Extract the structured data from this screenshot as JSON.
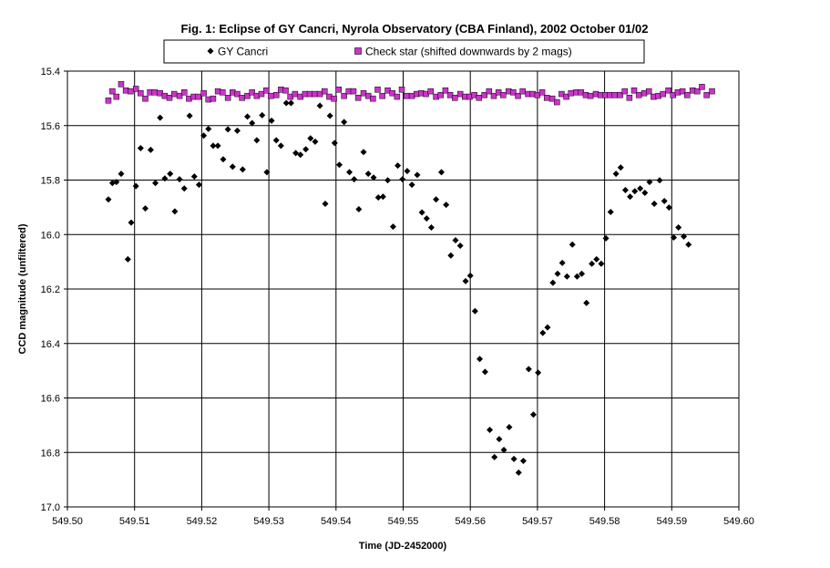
{
  "chart_data": {
    "type": "scatter",
    "title": "Fig. 1:  Eclipse of GY Cancri, Nyrola Observatory (CBA Finland), 2002 October 01/02",
    "xlabel": "Time (JD-2452000)",
    "ylabel": "CCD magnitude (unfiltered)",
    "xlim": [
      549.5,
      549.6
    ],
    "ylim": [
      15.4,
      17.0
    ],
    "y_inverted": true,
    "x_ticks": [
      "549.50",
      "549.51",
      "549.52",
      "549.53",
      "549.54",
      "549.55",
      "549.56",
      "549.57",
      "549.58",
      "549.59",
      "549.60"
    ],
    "y_ticks": [
      "15.4",
      "15.6",
      "15.8",
      "16.0",
      "16.2",
      "16.4",
      "16.6",
      "16.8",
      "17.0"
    ],
    "grid": {
      "horizontal": true,
      "vertical": true
    },
    "legend_position": "top",
    "series": [
      {
        "name": "GY Cancri",
        "marker": "diamond",
        "color": "#000000",
        "points": [
          [
            549.5061,
            15.871
          ],
          [
            549.5067,
            15.811
          ],
          [
            549.5073,
            15.807
          ],
          [
            549.508,
            15.777
          ],
          [
            549.509,
            16.091
          ],
          [
            549.5095,
            15.956
          ],
          [
            549.5102,
            15.822
          ],
          [
            549.5109,
            15.683
          ],
          [
            549.5116,
            15.904
          ],
          [
            549.5124,
            15.689
          ],
          [
            549.5131,
            15.811
          ],
          [
            549.5138,
            15.571
          ],
          [
            549.5145,
            15.794
          ],
          [
            549.5153,
            15.777
          ],
          [
            549.516,
            15.915
          ],
          [
            549.5167,
            15.797
          ],
          [
            549.5174,
            15.831
          ],
          [
            549.5182,
            15.564
          ],
          [
            549.5189,
            15.787
          ],
          [
            549.5196,
            15.817
          ],
          [
            549.5203,
            15.637
          ],
          [
            549.521,
            15.612
          ],
          [
            549.5217,
            15.674
          ],
          [
            549.5224,
            15.674
          ],
          [
            549.5232,
            15.724
          ],
          [
            549.5239,
            15.614
          ],
          [
            549.5246,
            15.751
          ],
          [
            549.5253,
            15.619
          ],
          [
            549.5261,
            15.761
          ],
          [
            549.5268,
            15.567
          ],
          [
            549.5275,
            15.591
          ],
          [
            549.5282,
            15.654
          ],
          [
            549.529,
            15.562
          ],
          [
            549.5297,
            15.771
          ],
          [
            549.5304,
            15.582
          ],
          [
            549.5311,
            15.654
          ],
          [
            549.5318,
            15.674
          ],
          [
            549.5326,
            15.517
          ],
          [
            549.5333,
            15.517
          ],
          [
            549.534,
            15.701
          ],
          [
            549.5347,
            15.707
          ],
          [
            549.5355,
            15.687
          ],
          [
            549.5362,
            15.647
          ],
          [
            549.5369,
            15.659
          ],
          [
            549.5376,
            15.527
          ],
          [
            549.5384,
            15.887
          ],
          [
            549.5391,
            15.564
          ],
          [
            549.5398,
            15.664
          ],
          [
            549.5405,
            15.744
          ],
          [
            549.5412,
            15.587
          ],
          [
            549.542,
            15.771
          ],
          [
            549.5427,
            15.797
          ],
          [
            549.5434,
            15.907
          ],
          [
            549.5441,
            15.697
          ],
          [
            549.5448,
            15.777
          ],
          [
            549.5456,
            15.791
          ],
          [
            549.5463,
            15.864
          ],
          [
            549.547,
            15.861
          ],
          [
            549.5477,
            15.801
          ],
          [
            549.5485,
            15.971
          ],
          [
            549.5492,
            15.747
          ],
          [
            549.5499,
            15.797
          ],
          [
            549.5506,
            15.767
          ],
          [
            549.5513,
            15.817
          ],
          [
            549.5521,
            15.781
          ],
          [
            549.5528,
            15.919
          ],
          [
            549.5535,
            15.941
          ],
          [
            549.5542,
            15.974
          ],
          [
            549.5549,
            15.871
          ],
          [
            549.5557,
            15.771
          ],
          [
            549.5564,
            15.891
          ],
          [
            549.5571,
            16.077
          ],
          [
            549.5578,
            16.021
          ],
          [
            549.5585,
            16.041
          ],
          [
            549.5593,
            16.171
          ],
          [
            549.56,
            16.151
          ],
          [
            549.5607,
            16.281
          ],
          [
            549.5614,
            16.457
          ],
          [
            549.5622,
            16.504
          ],
          [
            549.5629,
            16.717
          ],
          [
            549.5636,
            16.817
          ],
          [
            549.5643,
            16.751
          ],
          [
            549.565,
            16.791
          ],
          [
            549.5658,
            16.707
          ],
          [
            549.5665,
            16.824
          ],
          [
            549.5672,
            16.874
          ],
          [
            549.5679,
            16.831
          ],
          [
            549.5687,
            16.494
          ],
          [
            549.5694,
            16.661
          ],
          [
            549.5701,
            16.507
          ],
          [
            549.5708,
            16.361
          ],
          [
            549.5715,
            16.341
          ],
          [
            549.5723,
            16.177
          ],
          [
            549.573,
            16.144
          ],
          [
            549.5737,
            16.104
          ],
          [
            549.5744,
            16.154
          ],
          [
            549.5752,
            16.037
          ],
          [
            549.5759,
            16.154
          ],
          [
            549.5766,
            16.144
          ],
          [
            549.5773,
            16.251
          ],
          [
            549.5781,
            16.107
          ],
          [
            549.5788,
            16.091
          ],
          [
            549.5795,
            16.107
          ],
          [
            549.5802,
            16.014
          ],
          [
            549.5809,
            15.917
          ],
          [
            549.5817,
            15.777
          ],
          [
            549.5824,
            15.754
          ],
          [
            549.5831,
            15.837
          ],
          [
            549.5838,
            15.861
          ],
          [
            549.5845,
            15.841
          ],
          [
            549.5853,
            15.831
          ],
          [
            549.586,
            15.847
          ],
          [
            549.5867,
            15.807
          ],
          [
            549.5874,
            15.887
          ],
          [
            549.5882,
            15.801
          ],
          [
            549.5889,
            15.877
          ],
          [
            549.5896,
            15.901
          ],
          [
            549.5903,
            16.011
          ],
          [
            549.591,
            15.974
          ],
          [
            549.5918,
            16.007
          ],
          [
            549.5925,
            16.037
          ]
        ]
      },
      {
        "name": "Check star (shifted downwards by 2 mags)",
        "marker": "square",
        "color": "#cc33cc",
        "points": [
          [
            549.5061,
            15.508
          ],
          [
            549.5067,
            15.474
          ],
          [
            549.5073,
            15.494
          ],
          [
            549.508,
            15.448
          ],
          [
            549.5087,
            15.471
          ],
          [
            549.5094,
            15.474
          ],
          [
            549.5102,
            15.465
          ],
          [
            549.5109,
            15.481
          ],
          [
            549.5116,
            15.501
          ],
          [
            549.5123,
            15.478
          ],
          [
            549.513,
            15.478
          ],
          [
            549.5138,
            15.481
          ],
          [
            549.5145,
            15.491
          ],
          [
            549.5152,
            15.498
          ],
          [
            549.5159,
            15.484
          ],
          [
            549.5167,
            15.491
          ],
          [
            549.5174,
            15.478
          ],
          [
            549.5181,
            15.501
          ],
          [
            549.5188,
            15.494
          ],
          [
            549.5195,
            15.494
          ],
          [
            549.5203,
            15.481
          ],
          [
            549.521,
            15.504
          ],
          [
            549.5217,
            15.501
          ],
          [
            549.5224,
            15.474
          ],
          [
            549.5231,
            15.478
          ],
          [
            549.5239,
            15.498
          ],
          [
            549.5246,
            15.478
          ],
          [
            549.5253,
            15.484
          ],
          [
            549.526,
            15.498
          ],
          [
            549.5268,
            15.491
          ],
          [
            549.5275,
            15.478
          ],
          [
            549.5282,
            15.491
          ],
          [
            549.5289,
            15.484
          ],
          [
            549.5296,
            15.471
          ],
          [
            549.5303,
            15.491
          ],
          [
            549.5311,
            15.488
          ],
          [
            549.5318,
            15.468
          ],
          [
            549.5325,
            15.471
          ],
          [
            549.5332,
            15.494
          ],
          [
            549.5339,
            15.484
          ],
          [
            549.5347,
            15.494
          ],
          [
            549.5354,
            15.484
          ],
          [
            549.5361,
            15.484
          ],
          [
            549.5368,
            15.484
          ],
          [
            549.5376,
            15.484
          ],
          [
            549.5383,
            15.474
          ],
          [
            549.539,
            15.494
          ],
          [
            549.5397,
            15.501
          ],
          [
            549.5404,
            15.468
          ],
          [
            549.5412,
            15.491
          ],
          [
            549.5419,
            15.474
          ],
          [
            549.5426,
            15.474
          ],
          [
            549.5433,
            15.498
          ],
          [
            549.5441,
            15.481
          ],
          [
            549.5448,
            15.491
          ],
          [
            549.5455,
            15.501
          ],
          [
            549.5462,
            15.468
          ],
          [
            549.5469,
            15.491
          ],
          [
            549.5477,
            15.471
          ],
          [
            549.5484,
            15.481
          ],
          [
            549.5491,
            15.494
          ],
          [
            549.5498,
            15.468
          ],
          [
            549.5505,
            15.491
          ],
          [
            549.5513,
            15.491
          ],
          [
            549.552,
            15.484
          ],
          [
            549.5527,
            15.481
          ],
          [
            549.5534,
            15.484
          ],
          [
            549.5541,
            15.474
          ],
          [
            549.5549,
            15.494
          ],
          [
            549.5556,
            15.488
          ],
          [
            549.5563,
            15.471
          ],
          [
            549.557,
            15.488
          ],
          [
            549.5577,
            15.498
          ],
          [
            549.5585,
            15.484
          ],
          [
            549.5592,
            15.494
          ],
          [
            549.5599,
            15.494
          ],
          [
            549.5606,
            15.488
          ],
          [
            549.5613,
            15.498
          ],
          [
            549.5621,
            15.488
          ],
          [
            549.5628,
            15.474
          ],
          [
            549.5635,
            15.491
          ],
          [
            549.5642,
            15.478
          ],
          [
            549.5649,
            15.488
          ],
          [
            549.5657,
            15.474
          ],
          [
            549.5664,
            15.478
          ],
          [
            549.5671,
            15.491
          ],
          [
            549.5678,
            15.474
          ],
          [
            549.5686,
            15.484
          ],
          [
            549.5693,
            15.484
          ],
          [
            549.57,
            15.488
          ],
          [
            549.5707,
            15.478
          ],
          [
            549.5714,
            15.498
          ],
          [
            549.5722,
            15.501
          ],
          [
            549.5729,
            15.514
          ],
          [
            549.5736,
            15.484
          ],
          [
            549.5743,
            15.494
          ],
          [
            549.575,
            15.481
          ],
          [
            549.5758,
            15.478
          ],
          [
            549.5765,
            15.478
          ],
          [
            549.5772,
            15.488
          ],
          [
            549.5779,
            15.491
          ],
          [
            549.5787,
            15.484
          ],
          [
            549.5794,
            15.488
          ],
          [
            549.5801,
            15.488
          ],
          [
            549.5808,
            15.488
          ],
          [
            549.5815,
            15.488
          ],
          [
            549.5823,
            15.488
          ],
          [
            549.583,
            15.474
          ],
          [
            549.5837,
            15.498
          ],
          [
            549.5844,
            15.471
          ],
          [
            549.5851,
            15.488
          ],
          [
            549.5859,
            15.481
          ],
          [
            549.5866,
            15.474
          ],
          [
            549.5873,
            15.494
          ],
          [
            549.588,
            15.491
          ],
          [
            549.5887,
            15.484
          ],
          [
            549.5895,
            15.471
          ],
          [
            549.5902,
            15.488
          ],
          [
            549.5909,
            15.478
          ],
          [
            549.5916,
            15.474
          ],
          [
            549.5923,
            15.488
          ],
          [
            549.5931,
            15.471
          ],
          [
            549.5938,
            15.474
          ],
          [
            549.5945,
            15.458
          ],
          [
            549.5952,
            15.488
          ],
          [
            549.596,
            15.474
          ]
        ]
      }
    ]
  }
}
